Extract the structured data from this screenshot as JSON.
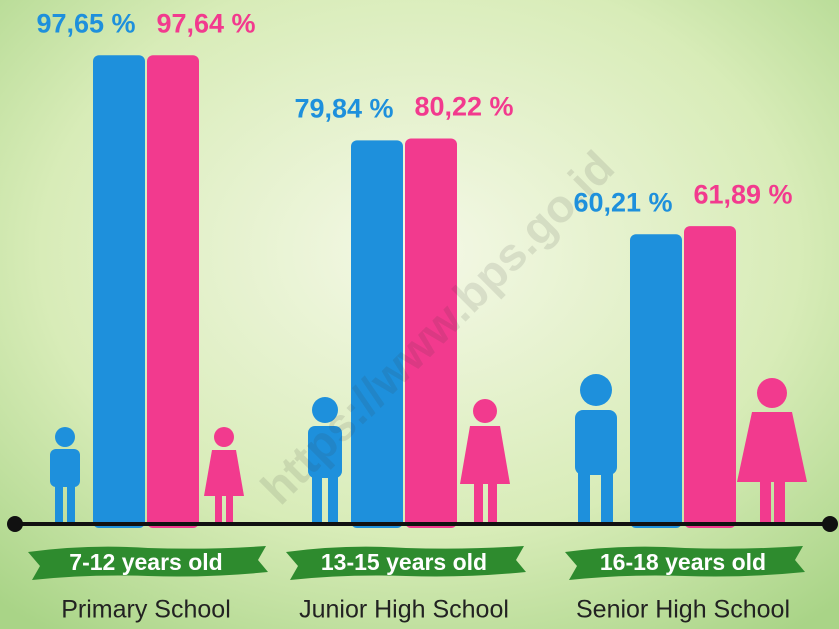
{
  "chart_data": {
    "type": "bar",
    "categories": [
      "Primary School",
      "Junior High School",
      "Senior High School"
    ],
    "age_groups": [
      "7-12 years old",
      "13-15 years old",
      "16-18 years old"
    ],
    "series": [
      {
        "color": "#1e90dc",
        "values": [
          97.65,
          79.84,
          60.21
        ],
        "value_labels": [
          "97,65 %",
          "79,84 %",
          "60,21 %"
        ]
      },
      {
        "color": "#f23a8e",
        "values": [
          97.64,
          80.22,
          61.89
        ],
        "value_labels": [
          "97,64 %",
          "80,22 %",
          "61,89 %"
        ]
      }
    ],
    "ylim": [
      0,
      100
    ]
  },
  "watermark": "https://www.bps.go.id"
}
